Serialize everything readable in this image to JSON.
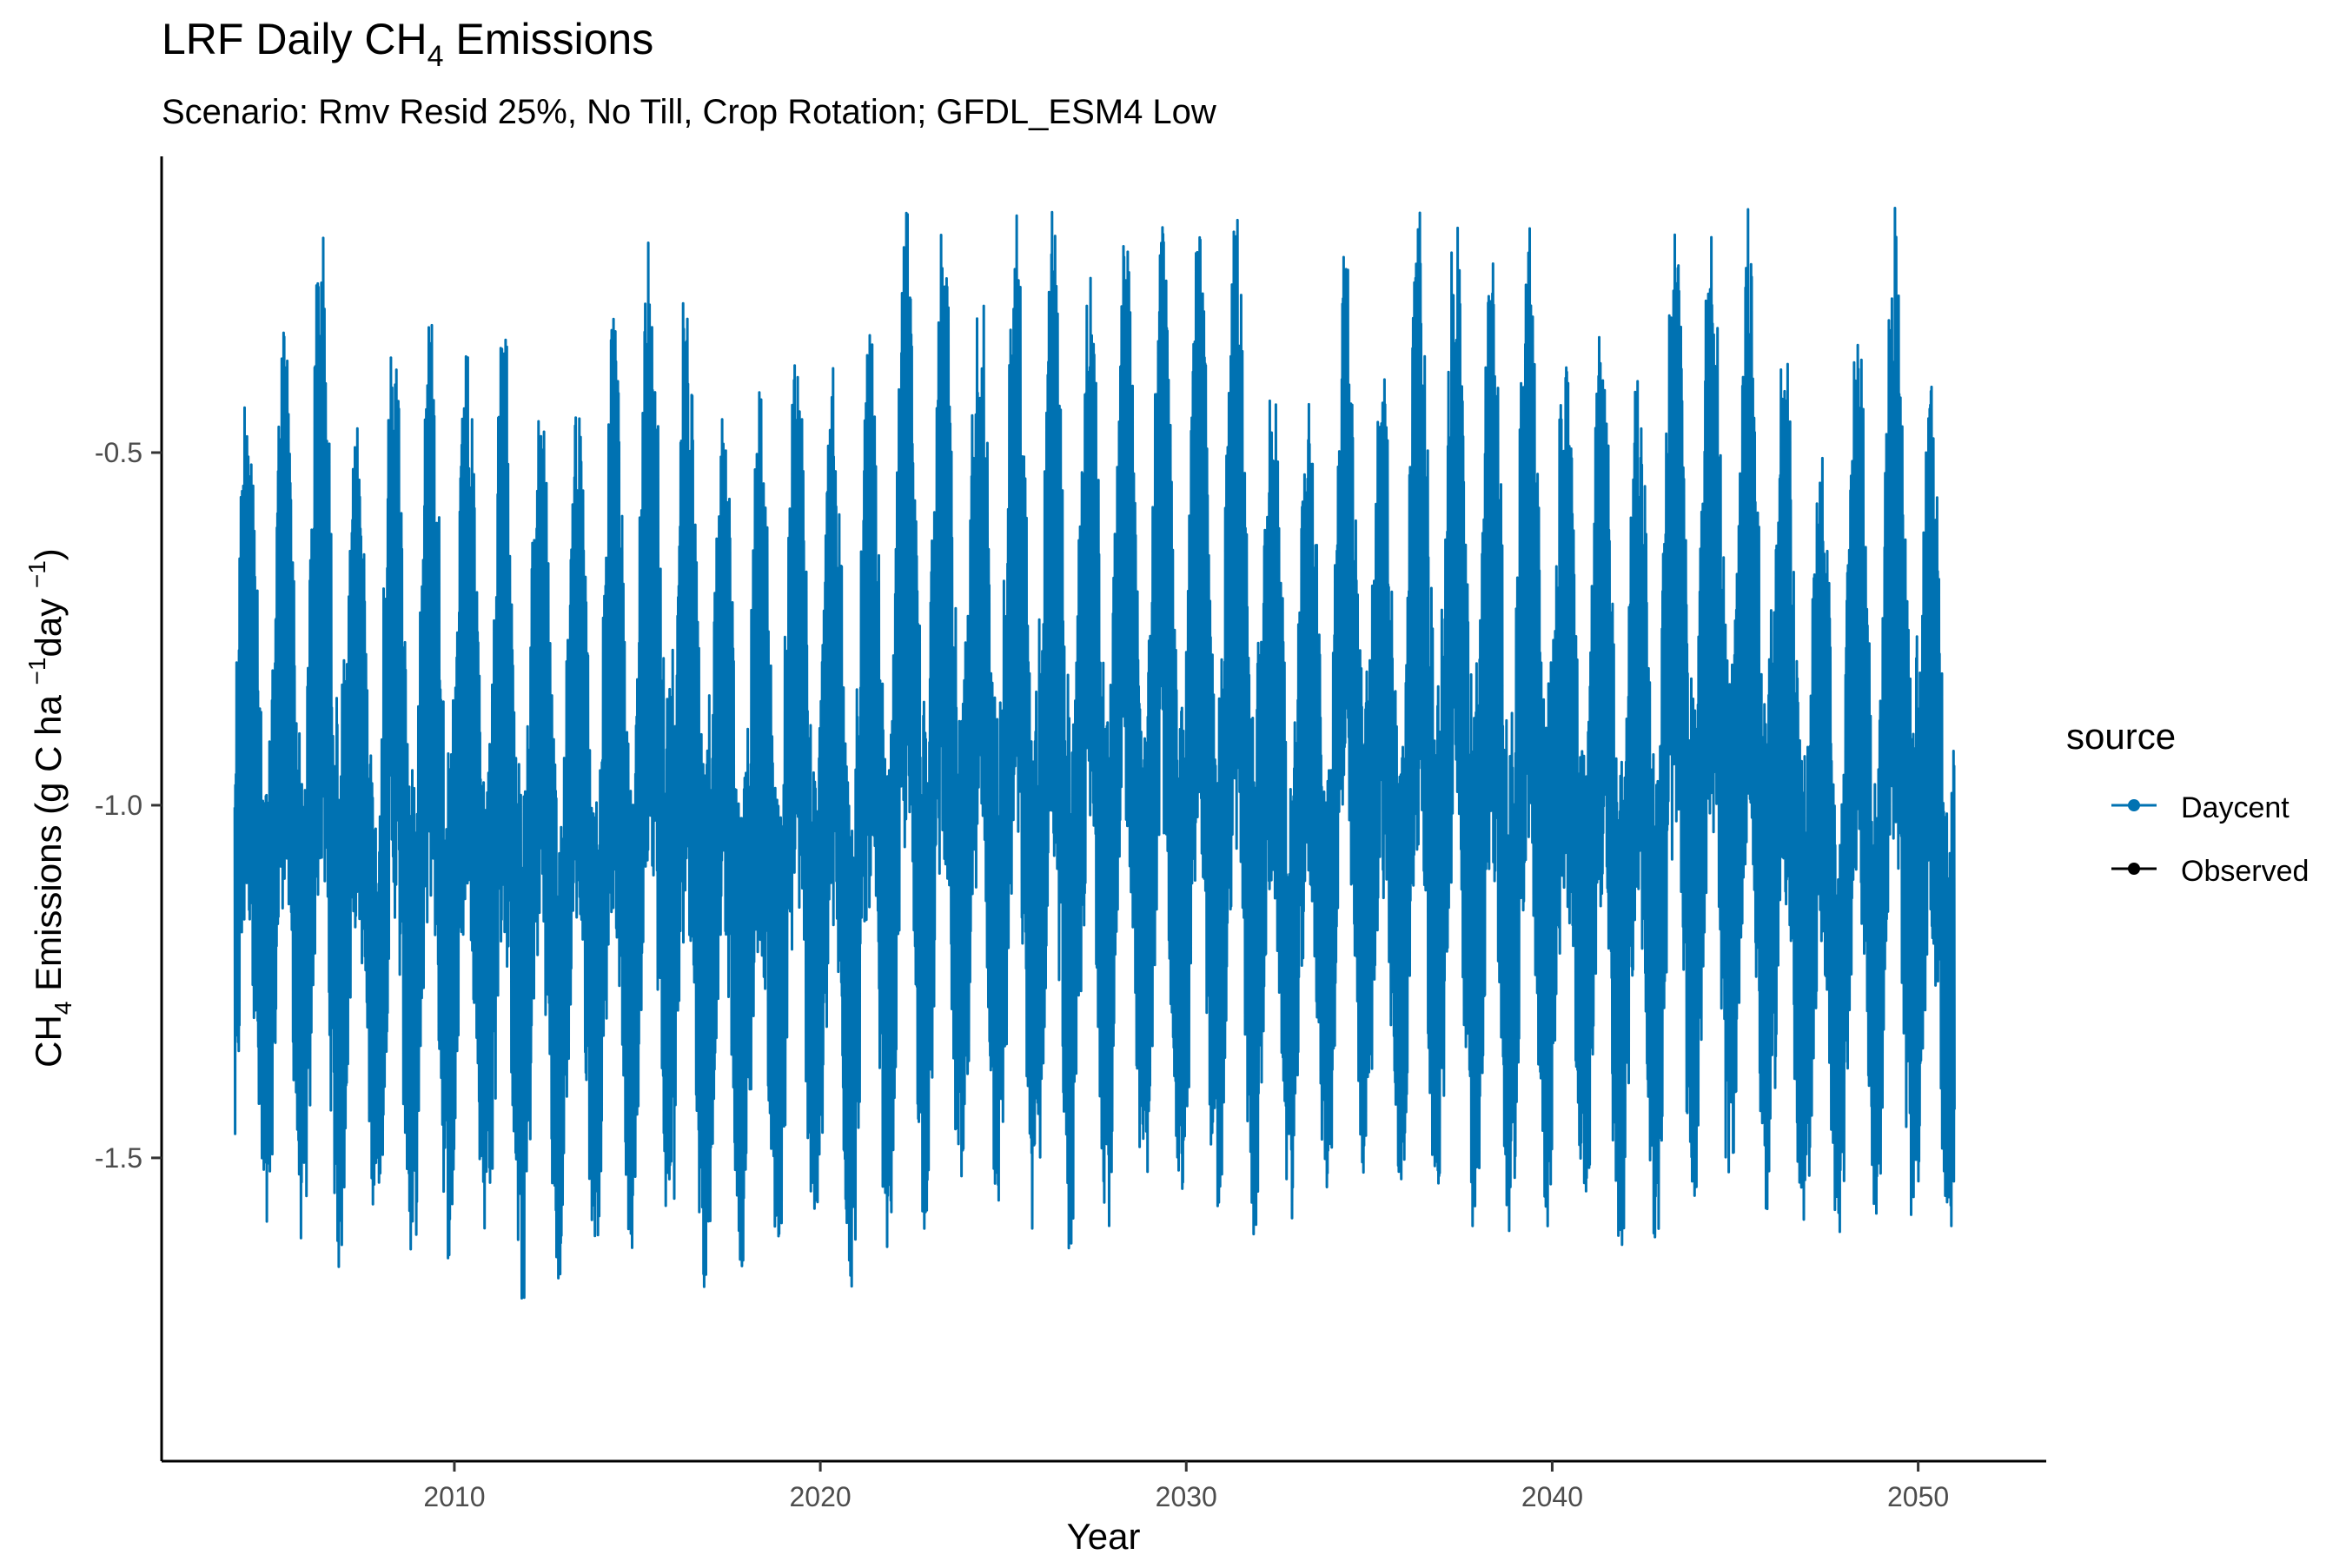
{
  "chart_data": {
    "type": "line",
    "title_main": "LRF Daily CH",
    "title_sub": "4",
    "title_rest": " Emissions",
    "subtitle": "Scenario: Rmv Resid 25%, No Till, Crop Rotation; GFDL_ESM4 Low",
    "xlabel": "Year",
    "ylabel": {
      "a": "CH",
      "b": "4",
      "c": " Emissions (g C ha ",
      "d": "−1",
      "e": "day ",
      "f": "−1",
      "g": ")"
    },
    "xlim": [
      2002,
      2053.5
    ],
    "ylim": [
      -1.93,
      -0.08
    ],
    "xticks": [
      2010,
      2020,
      2030,
      2040,
      2050
    ],
    "xtick_labels": [
      "2010",
      "2020",
      "2030",
      "2040",
      "2050"
    ],
    "yticks": [
      -0.5,
      -1.0,
      -1.5
    ],
    "ytick_labels": [
      "-0.5",
      "-1.0",
      "-1.5"
    ],
    "grid": false,
    "legend": {
      "title": "source",
      "position": "right",
      "entries": [
        {
          "name": "Daycent",
          "color": "#0072B2"
        },
        {
          "name": "Observed",
          "color": "#000000"
        }
      ]
    },
    "series": [
      {
        "name": "Daycent",
        "color": "#0072B2",
        "x_start": 2004.0,
        "x_end": 2051.0,
        "yearly_peaks": [
          -0.35,
          -0.3,
          -0.15,
          -0.45,
          -0.3,
          -0.28,
          -0.35,
          -0.3,
          -0.38,
          -0.4,
          -0.3,
          -0.15,
          -0.22,
          -0.4,
          -0.38,
          -0.32,
          -0.38,
          -0.32,
          -0.15,
          -0.15,
          -0.2,
          -0.15,
          -0.15,
          -0.2,
          -0.15,
          -0.18,
          -0.15,
          -0.13,
          -0.35,
          -0.4,
          -0.2,
          -0.35,
          -0.15,
          -0.15,
          -0.2,
          -0.16,
          -0.32,
          -0.28,
          -0.36,
          -0.15,
          -0.14,
          -0.15,
          -0.32,
          -0.45,
          -0.3,
          -0.15,
          -0.4
        ],
        "yearly_troughs": [
          -1.72,
          -1.7,
          -1.75,
          -1.65,
          -1.74,
          -1.72,
          -1.68,
          -1.8,
          -1.76,
          -1.7,
          -1.72,
          -1.68,
          -1.78,
          -1.72,
          -1.75,
          -1.7,
          -1.76,
          -1.7,
          -1.68,
          -1.68,
          -1.66,
          -1.7,
          -1.73,
          -1.68,
          -1.64,
          -1.66,
          -1.72,
          -1.7,
          -1.66,
          -1.62,
          -1.6,
          -1.64,
          -1.66,
          -1.68,
          -1.72,
          -1.68,
          -1.66,
          -1.73,
          -1.7,
          -1.66,
          -1.64,
          -1.66,
          -1.7,
          -1.72,
          -1.66,
          -1.68,
          -1.73
        ]
      },
      {
        "name": "Observed",
        "color": "#000000",
        "values": []
      }
    ]
  }
}
